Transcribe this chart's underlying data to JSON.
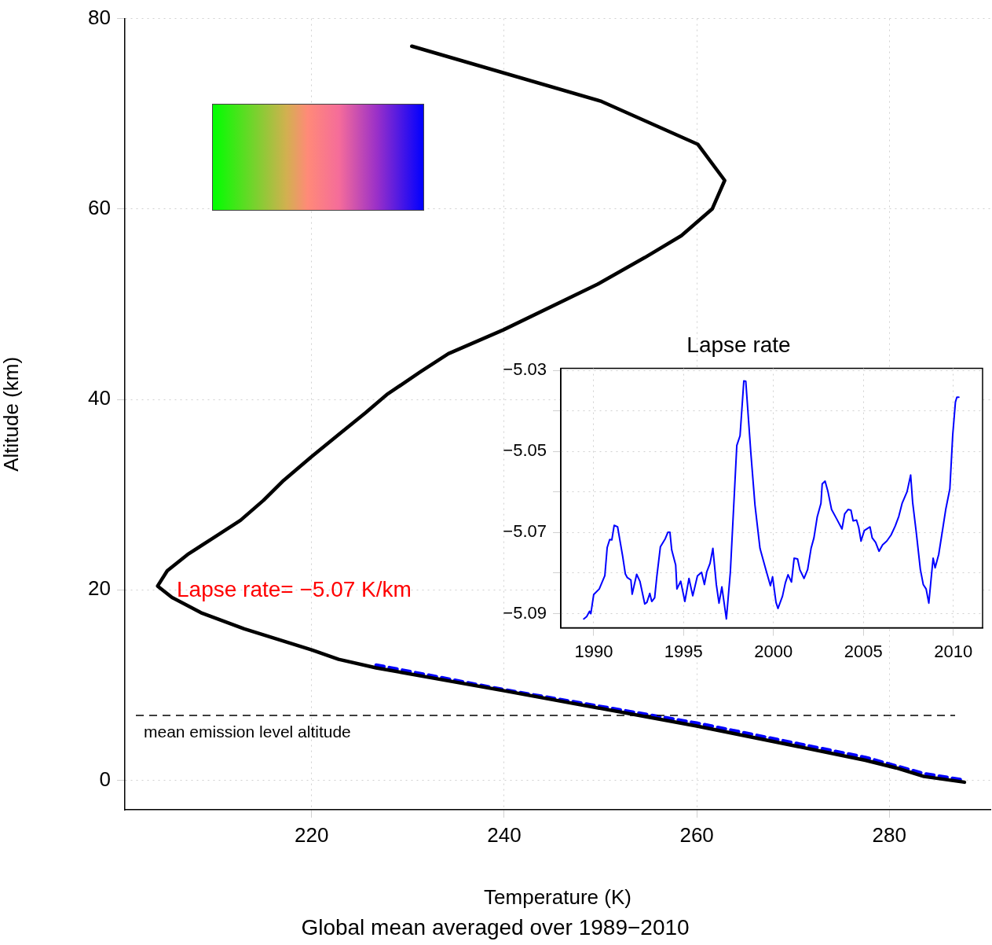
{
  "chart_data": [
    {
      "type": "line",
      "xlabel": "Temperature (K)",
      "subtitle": "Global mean averaged over 1989−2010",
      "ylabel": "Altitude (km)",
      "xlim": [
        200.6,
        290.5
      ],
      "ylim": [
        -3.1,
        80
      ],
      "xticks": [
        220,
        240,
        260,
        280
      ],
      "yticks": [
        0,
        20,
        40,
        60,
        80
      ],
      "grid": true,
      "series": [
        {
          "color": "#000000",
          "line_style": "solid",
          "x": [
            230.4,
            250.1,
            260.1,
            262.9,
            261.6,
            258.4,
            254.6,
            249.7,
            239.9,
            234.2,
            231.3,
            227.8,
            225.6,
            222.8,
            220.0,
            217.1,
            215.0,
            212.6,
            209.7,
            207.1,
            205.0,
            204.0,
            205.5,
            208.5,
            213.0,
            220.0,
            222.8,
            226.7,
            240.0,
            260.0,
            269.3,
            277.5,
            280.7,
            283.6,
            287.8
          ],
          "values": [
            77.1,
            71.3,
            66.8,
            63.0,
            60.0,
            57.2,
            54.9,
            52.1,
            47.3,
            44.8,
            42.9,
            40.5,
            38.6,
            36.3,
            34.0,
            31.5,
            29.4,
            27.3,
            25.4,
            23.7,
            22.0,
            20.4,
            19.2,
            17.6,
            15.9,
            13.7,
            12.7,
            11.8,
            9.4,
            5.7,
            3.8,
            2.1,
            1.3,
            0.4,
            -0.2
          ]
        },
        {
          "color": "#0000ff",
          "line_style": "dashed",
          "x": [
            226.7,
            240.0,
            260.0,
            277.5,
            283.6,
            287.8
          ],
          "values": [
            12.1,
            9.5,
            6.0,
            2.4,
            0.7,
            0.0
          ]
        }
      ],
      "ref_lines": [
        {
          "axis": "y",
          "value": 6.8,
          "label": "mean emission level altitude",
          "color": "#000000",
          "line_style": "dashed"
        }
      ],
      "annotations": [
        "Lapse rate= −5.07 K/km"
      ]
    },
    {
      "type": "line",
      "title": "Lapse rate",
      "color": "#0000ff",
      "grid": true,
      "xlim": [
        1988.17,
        2011.63
      ],
      "ylim": [
        -5.0935,
        -5.0295
      ],
      "xticks": [
        1990,
        1995,
        2000,
        2005,
        2010
      ],
      "yticks": [
        {
          "value": -5.09,
          "label": "−5.09"
        },
        {
          "value": -5.08,
          "label": null
        },
        {
          "value": -5.07,
          "label": "−5.07"
        },
        {
          "value": -5.06,
          "label": null
        },
        {
          "value": -5.05,
          "label": "−5.05"
        },
        {
          "value": -5.04,
          "label": null
        },
        {
          "value": -5.03,
          "label": "−5.03"
        }
      ],
      "x": [
        1989.45,
        1989.61,
        1989.77,
        1989.84,
        1990.0,
        1990.31,
        1990.62,
        1990.75,
        1990.89,
        1991.01,
        1991.14,
        1991.33,
        1991.61,
        1991.76,
        1991.87,
        1992.07,
        1992.14,
        1992.39,
        1992.57,
        1992.84,
        1992.96,
        1993.12,
        1993.23,
        1993.39,
        1993.51,
        1993.71,
        1993.98,
        1994.13,
        1994.24,
        1994.34,
        1994.56,
        1994.63,
        1994.84,
        1995.07,
        1995.3,
        1995.51,
        1995.77,
        1996.0,
        1996.16,
        1996.29,
        1996.47,
        1996.63,
        1996.82,
        1996.97,
        1997.13,
        1997.38,
        1997.6,
        1997.96,
        1998.14,
        1998.35,
        1998.46,
        1998.74,
        1998.97,
        1999.25,
        1999.56,
        1999.83,
        1999.95,
        2000.14,
        2000.25,
        2000.5,
        2000.66,
        2000.81,
        2001.0,
        2001.15,
        2001.34,
        2001.47,
        2001.7,
        2001.9,
        2002.09,
        2002.25,
        2002.43,
        2002.64,
        2002.71,
        2002.87,
        2003.03,
        2003.23,
        2003.5,
        2003.81,
        2003.96,
        2004.15,
        2004.31,
        2004.43,
        2004.62,
        2004.74,
        2004.87,
        2005.05,
        2005.37,
        2005.49,
        2005.68,
        2005.87,
        2006.07,
        2006.3,
        2006.54,
        2006.77,
        2006.97,
        2007.16,
        2007.43,
        2007.63,
        2007.74,
        2007.94,
        2008.17,
        2008.33,
        2008.49,
        2008.64,
        2008.77,
        2008.88,
        2008.99,
        2009.19,
        2009.42,
        2009.58,
        2009.81,
        2009.97,
        2010.12,
        2010.2,
        2010.31
      ],
      "values": [
        -5.0913,
        -5.0907,
        -5.0894,
        -5.09,
        -5.0853,
        -5.0839,
        -5.0806,
        -5.0737,
        -5.0717,
        -5.0718,
        -5.0682,
        -5.0686,
        -5.0758,
        -5.0802,
        -5.0811,
        -5.0817,
        -5.0852,
        -5.0803,
        -5.082,
        -5.0876,
        -5.0872,
        -5.085,
        -5.087,
        -5.0861,
        -5.0809,
        -5.0735,
        -5.0715,
        -5.0699,
        -5.0699,
        -5.0743,
        -5.078,
        -5.0839,
        -5.082,
        -5.087,
        -5.0813,
        -5.0856,
        -5.0807,
        -5.0798,
        -5.0828,
        -5.0797,
        -5.0776,
        -5.0739,
        -5.0828,
        -5.0874,
        -5.0834,
        -5.0913,
        -5.0798,
        -5.0485,
        -5.0461,
        -5.0326,
        -5.0327,
        -5.0503,
        -5.0632,
        -5.0739,
        -5.0789,
        -5.0831,
        -5.0809,
        -5.0872,
        -5.0887,
        -5.0857,
        -5.0824,
        -5.0804,
        -5.0822,
        -5.0763,
        -5.0765,
        -5.0792,
        -5.0813,
        -5.0791,
        -5.0739,
        -5.0713,
        -5.0662,
        -5.0628,
        -5.058,
        -5.0573,
        -5.0599,
        -5.0643,
        -5.0665,
        -5.0691,
        -5.0654,
        -5.0643,
        -5.0645,
        -5.0671,
        -5.0669,
        -5.0687,
        -5.0721,
        -5.0695,
        -5.0686,
        -5.0713,
        -5.0724,
        -5.0746,
        -5.073,
        -5.0721,
        -5.0706,
        -5.0684,
        -5.066,
        -5.0627,
        -5.0599,
        -5.0558,
        -5.0625,
        -5.0699,
        -5.0791,
        -5.0828,
        -5.0839,
        -5.0874,
        -5.0813,
        -5.0763,
        -5.0787,
        -5.0754,
        -5.0689,
        -5.0643,
        -5.0592,
        -5.0459,
        -5.0378,
        -5.0366,
        -5.0366
      ]
    }
  ]
}
